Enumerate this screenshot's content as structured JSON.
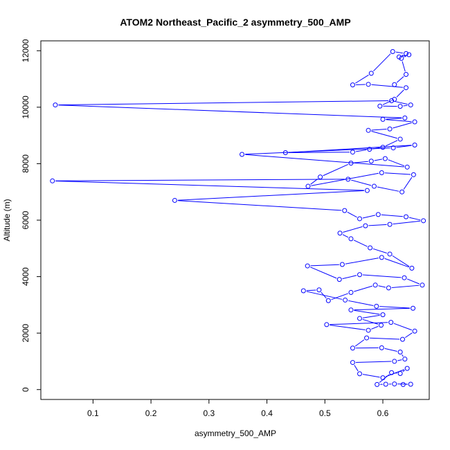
{
  "chart_data": {
    "type": "scatter",
    "title": "ATOM2 Northeast_Pacific_2 asymmetry_500_AMP",
    "xlabel": "asymmetry_500_AMP",
    "ylabel": "Altitude (m)",
    "xlim": [
      0.01,
      0.68
    ],
    "ylim": [
      -350,
      12350
    ],
    "xticks": [
      0.1,
      0.2,
      0.3,
      0.4,
      0.5,
      0.6
    ],
    "xtick_labels": [
      "0.1",
      "0.2",
      "0.3",
      "0.4",
      "0.5",
      "0.6"
    ],
    "yticks": [
      0,
      2000,
      4000,
      6000,
      8000,
      10000,
      12000
    ],
    "ytick_labels": [
      "0",
      "2000",
      "4000",
      "6000",
      "8000",
      "10000",
      "12000"
    ],
    "connected": true,
    "marker": "open-circle",
    "color": "#0000ff",
    "grid": false,
    "series": [
      {
        "points": [
          [
            0.635,
            180
          ],
          [
            0.648,
            190
          ],
          [
            0.62,
            200
          ],
          [
            0.605,
            190
          ],
          [
            0.59,
            180
          ],
          [
            0.615,
            600
          ],
          [
            0.63,
            570
          ],
          [
            0.642,
            750
          ],
          [
            0.6,
            420
          ],
          [
            0.56,
            560
          ],
          [
            0.548,
            960
          ],
          [
            0.62,
            1000
          ],
          [
            0.638,
            1080
          ],
          [
            0.63,
            1330
          ],
          [
            0.598,
            1480
          ],
          [
            0.548,
            1470
          ],
          [
            0.572,
            1830
          ],
          [
            0.634,
            1780
          ],
          [
            0.655,
            2070
          ],
          [
            0.614,
            2380
          ],
          [
            0.503,
            2300
          ],
          [
            0.575,
            2100
          ],
          [
            0.597,
            2280
          ],
          [
            0.56,
            2520
          ],
          [
            0.6,
            2650
          ],
          [
            0.545,
            2820
          ],
          [
            0.652,
            2880
          ],
          [
            0.589,
            2950
          ],
          [
            0.535,
            3170
          ],
          [
            0.463,
            3500
          ],
          [
            0.49,
            3530
          ],
          [
            0.506,
            3150
          ],
          [
            0.545,
            3440
          ],
          [
            0.587,
            3700
          ],
          [
            0.61,
            3600
          ],
          [
            0.668,
            3700
          ],
          [
            0.637,
            3960
          ],
          [
            0.56,
            4070
          ],
          [
            0.525,
            3900
          ],
          [
            0.47,
            4380
          ],
          [
            0.53,
            4430
          ],
          [
            0.598,
            4680
          ],
          [
            0.65,
            4300
          ],
          [
            0.612,
            4800
          ],
          [
            0.578,
            5020
          ],
          [
            0.545,
            5340
          ],
          [
            0.526,
            5540
          ],
          [
            0.57,
            5800
          ],
          [
            0.612,
            5850
          ],
          [
            0.67,
            5980
          ],
          [
            0.64,
            6120
          ],
          [
            0.592,
            6200
          ],
          [
            0.56,
            6050
          ],
          [
            0.534,
            6340
          ],
          [
            0.241,
            6700
          ],
          [
            0.573,
            7050
          ],
          [
            0.03,
            7390
          ],
          [
            0.54,
            7450
          ],
          [
            0.585,
            7200
          ],
          [
            0.633,
            7000
          ],
          [
            0.653,
            7610
          ],
          [
            0.598,
            7680
          ],
          [
            0.471,
            7200
          ],
          [
            0.492,
            7530
          ],
          [
            0.545,
            8020
          ],
          [
            0.58,
            8090
          ],
          [
            0.604,
            8180
          ],
          [
            0.642,
            7880
          ],
          [
            0.357,
            8330
          ],
          [
            0.618,
            8560
          ],
          [
            0.655,
            8660
          ],
          [
            0.432,
            8390
          ],
          [
            0.548,
            8410
          ],
          [
            0.577,
            8510
          ],
          [
            0.6,
            8580
          ],
          [
            0.63,
            8870
          ],
          [
            0.575,
            9180
          ],
          [
            0.612,
            9230
          ],
          [
            0.655,
            9480
          ],
          [
            0.6,
            9570
          ],
          [
            0.638,
            9620
          ],
          [
            0.035,
            10080
          ],
          [
            0.615,
            10230
          ],
          [
            0.648,
            10080
          ],
          [
            0.63,
            10030
          ],
          [
            0.595,
            10040
          ],
          [
            0.62,
            10280
          ],
          [
            0.64,
            10690
          ],
          [
            0.575,
            10810
          ],
          [
            0.548,
            10790
          ],
          [
            0.58,
            11200
          ],
          [
            0.617,
            11970
          ],
          [
            0.64,
            11900
          ],
          [
            0.628,
            11780
          ],
          [
            0.645,
            11860
          ],
          [
            0.632,
            11730
          ],
          [
            0.64,
            11160
          ],
          [
            0.62,
            10800
          ]
        ]
      }
    ]
  }
}
